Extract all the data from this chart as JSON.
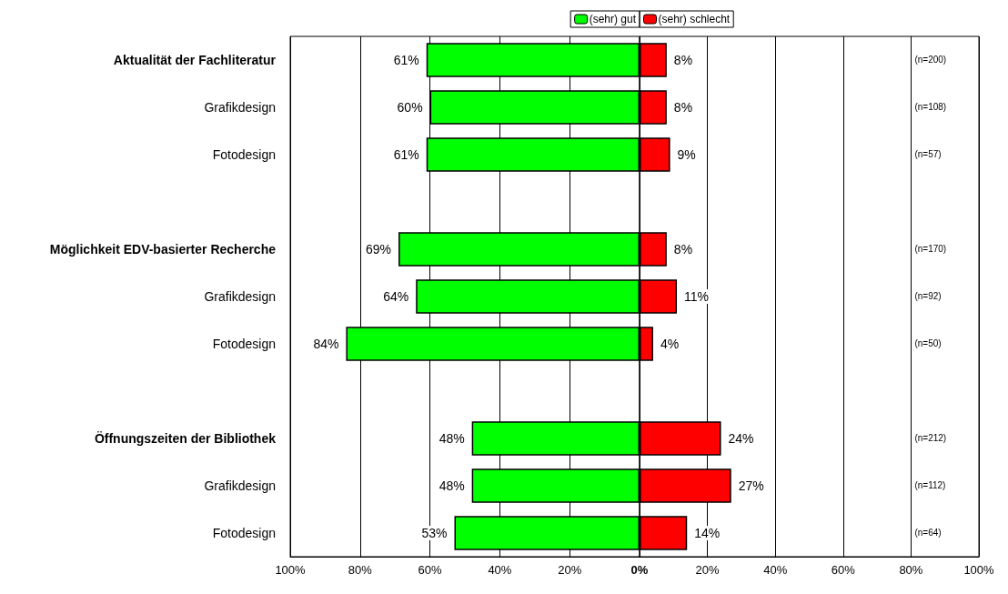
{
  "chart_data": [
    {
      "type": "bar",
      "orientation": "horizontal",
      "categories": [
        "Aktualität der Fachliteratur",
        "Grafikdesign",
        "Fotodesign",
        null,
        "Möglichkeit EDV-basierter Recherche",
        "Grafikdesign",
        "Fotodesign",
        null,
        "Öffnungszeiten der Bibliothek",
        "Grafikdesign",
        "Fotodesign"
      ],
      "series": [
        {
          "name": "(sehr) gut",
          "color": "#00ff00",
          "values": [
            61,
            60,
            61,
            null,
            69,
            64,
            84,
            null,
            48,
            48,
            53
          ],
          "value_labels": [
            "61%",
            "60%",
            "61%",
            null,
            "69%",
            "64%",
            "84%",
            null,
            "48%",
            "48%",
            "53%"
          ]
        }
      ],
      "xlim": [
        100,
        0
      ],
      "xticks": [
        {
          "value": 100,
          "label": "100%"
        },
        {
          "value": 80,
          "label": "80%"
        },
        {
          "value": 60,
          "label": "60%"
        },
        {
          "value": 40,
          "label": "40%"
        },
        {
          "value": 20,
          "label": "20%"
        },
        {
          "value": 0,
          "label": "0%"
        }
      ],
      "grid": "x",
      "legend": "top right"
    },
    {
      "type": "bar",
      "orientation": "horizontal",
      "categories": [
        null,
        null,
        null,
        null,
        null,
        null,
        null,
        null,
        null,
        null,
        null
      ],
      "series": [
        {
          "name": "(sehr) schlecht",
          "color": "#ff0000",
          "values": [
            8,
            8,
            9,
            null,
            8,
            11,
            4,
            null,
            24,
            27,
            14
          ],
          "value_labels": [
            "8%",
            "8%",
            "9%",
            null,
            "8%",
            "11%",
            "4%",
            null,
            "24%",
            "27%",
            "14%"
          ]
        }
      ],
      "xlim": [
        0,
        100
      ],
      "xticks": [
        {
          "value": 0,
          "label": null
        },
        {
          "value": 20,
          "label": "20%"
        },
        {
          "value": 40,
          "label": "40%"
        },
        {
          "value": 60,
          "label": "60%"
        },
        {
          "value": 80,
          "label": "80%"
        },
        {
          "value": 100,
          "label": "100%"
        }
      ],
      "grid": "x",
      "legend": "top left",
      "annotations": [
        "(n=200)",
        "(n=108)",
        "(n=57)",
        "(n=170)",
        "(n=92)",
        "(n=50)",
        "(n=212)",
        "(n=112)",
        "(n=64)"
      ]
    }
  ]
}
